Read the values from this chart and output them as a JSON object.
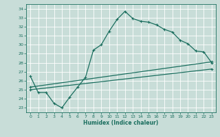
{
  "title": "",
  "xlabel": "Humidex (Indice chaleur)",
  "bg_color": "#c8ddd8",
  "line_color": "#1a6e5e",
  "grid_color": "#b0ccc8",
  "xlim": [
    -0.5,
    23.5
  ],
  "ylim": [
    22.5,
    34.5
  ],
  "yticks": [
    23,
    24,
    25,
    26,
    27,
    28,
    29,
    30,
    31,
    32,
    33,
    34
  ],
  "xticks": [
    0,
    1,
    2,
    3,
    4,
    5,
    6,
    7,
    8,
    9,
    10,
    11,
    12,
    13,
    14,
    15,
    16,
    17,
    18,
    19,
    20,
    21,
    22,
    23
  ],
  "curve1_x": [
    0,
    1,
    2,
    3,
    4,
    5,
    6,
    7,
    8,
    9,
    10,
    11,
    12,
    13,
    14,
    15,
    16,
    17,
    18,
    19,
    20,
    21,
    22,
    23
  ],
  "curve1_y": [
    26.5,
    24.7,
    24.7,
    23.5,
    23.0,
    24.2,
    25.3,
    26.4,
    29.4,
    30.0,
    31.5,
    32.8,
    33.7,
    32.9,
    32.6,
    32.5,
    32.2,
    31.7,
    31.4,
    30.5,
    30.1,
    29.3,
    29.2,
    28.0
  ],
  "curve2_x": [
    0,
    23
  ],
  "curve2_y": [
    25.3,
    28.1
  ],
  "curve3_x": [
    0,
    23
  ],
  "curve3_y": [
    25.0,
    27.3
  ]
}
